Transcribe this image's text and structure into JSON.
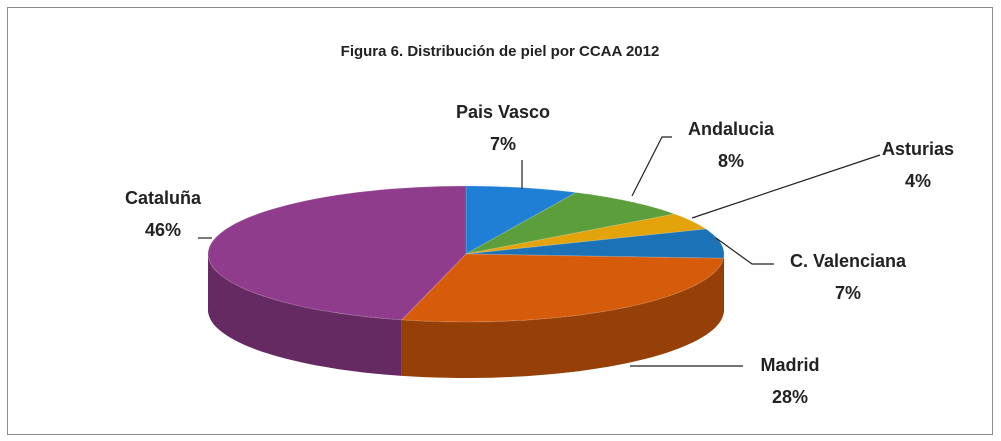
{
  "chart_data": {
    "type": "pie",
    "title": "Figura 6. Distribución de piel por CCAA 2012",
    "categories": [
      "Pais Vasco",
      "Andalucia",
      "Asturias",
      "C. Valenciana",
      "Madrid",
      "Cataluña"
    ],
    "values": [
      7,
      8,
      4,
      7,
      28,
      46
    ],
    "value_labels": [
      "7%",
      "8%",
      "4%",
      "7%",
      "28%",
      "46%"
    ],
    "colors": [
      "#1f7fd4",
      "#5c9e3c",
      "#e3a30a",
      "#1b72b6",
      "#d65c0c",
      "#903c8c"
    ]
  }
}
